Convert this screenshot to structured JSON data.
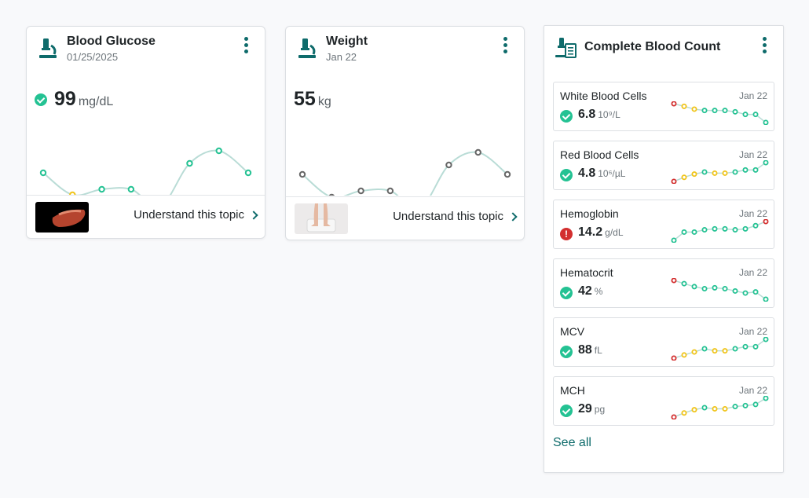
{
  "colors": {
    "accent": "#0e6b6b",
    "ok": "#24c293",
    "warn": "#f0c419",
    "alert": "#d32f2f",
    "neutral": "#666666",
    "line": "#b9dcd6"
  },
  "glucose": {
    "title": "Blood Glucose",
    "date": "01/25/2025",
    "value": "99",
    "unit": "mg/dL",
    "link": "Understand this topic",
    "points": [
      {
        "v": 186,
        "s": "ok"
      },
      {
        "v": 214,
        "s": "warn"
      },
      {
        "v": 207,
        "s": "ok"
      },
      {
        "v": 207,
        "s": "ok"
      },
      {
        "v": 229,
        "s": "alert"
      },
      {
        "v": 174,
        "s": "ok"
      },
      {
        "v": 158,
        "s": "ok"
      },
      {
        "v": 186,
        "s": "ok"
      }
    ]
  },
  "weight": {
    "title": "Weight",
    "date": "Jan 22",
    "value": "55",
    "unit": "kg",
    "link": "Understand this topic",
    "points": [
      {
        "v": 188,
        "s": "neutral"
      },
      {
        "v": 217,
        "s": "neutral"
      },
      {
        "v": 209,
        "s": "neutral"
      },
      {
        "v": 209,
        "s": "neutral"
      },
      {
        "v": 232,
        "s": "neutral"
      },
      {
        "v": 176,
        "s": "neutral"
      },
      {
        "v": 160,
        "s": "neutral"
      },
      {
        "v": 188,
        "s": "neutral"
      }
    ]
  },
  "cbc": {
    "title": "Complete Blood Count",
    "see_all": "See all",
    "rows": [
      {
        "name": "White Blood Cells",
        "date": "Jan 22",
        "value": "6.8",
        "unit": "10⁹/L",
        "status": "ok",
        "spark": [
          {
            "v": 1,
            "s": "alert"
          },
          {
            "v": 0.86,
            "s": "warn"
          },
          {
            "v": 0.71,
            "s": "warn"
          },
          {
            "v": 0.64,
            "s": "ok"
          },
          {
            "v": 0.64,
            "s": "ok"
          },
          {
            "v": 0.64,
            "s": "ok"
          },
          {
            "v": 0.57,
            "s": "ok"
          },
          {
            "v": 0.43,
            "s": "ok"
          },
          {
            "v": 0.43,
            "s": "ok"
          },
          {
            "v": 0
          }
        ]
      },
      {
        "name": "Red Blood Cells",
        "date": "Jan 22",
        "value": "4.8",
        "unit": "10⁶/µL",
        "status": "ok",
        "spark": [
          {
            "v": 0,
            "s": "alert"
          },
          {
            "v": 0.22,
            "s": "warn"
          },
          {
            "v": 0.39,
            "s": "warn"
          },
          {
            "v": 0.5,
            "s": "ok"
          },
          {
            "v": 0.44,
            "s": "warn"
          },
          {
            "v": 0.44,
            "s": "warn"
          },
          {
            "v": 0.5,
            "s": "ok"
          },
          {
            "v": 0.61,
            "s": "ok"
          },
          {
            "v": 0.61,
            "s": "ok"
          },
          {
            "v": 1,
            "s": "ok"
          }
        ]
      },
      {
        "name": "Hemoglobin",
        "date": "Jan 22",
        "value": "14.2",
        "unit": "g/dL",
        "status": "warn",
        "spark": [
          {
            "v": 0,
            "s": "ok"
          },
          {
            "v": 0.44,
            "s": "ok"
          },
          {
            "v": 0.44,
            "s": "ok"
          },
          {
            "v": 0.56,
            "s": "ok"
          },
          {
            "v": 0.61,
            "s": "ok"
          },
          {
            "v": 0.61,
            "s": "ok"
          },
          {
            "v": 0.56,
            "s": "ok"
          },
          {
            "v": 0.61,
            "s": "ok"
          },
          {
            "v": 0.78,
            "s": "ok"
          },
          {
            "v": 1,
            "s": "alert"
          }
        ]
      },
      {
        "name": "Hematocrit",
        "date": "Jan 22",
        "value": "42",
        "unit": "%",
        "status": "ok",
        "spark": [
          {
            "v": 1,
            "s": "alert"
          },
          {
            "v": 0.83,
            "s": "ok"
          },
          {
            "v": 0.67,
            "s": "ok"
          },
          {
            "v": 0.56,
            "s": "ok"
          },
          {
            "v": 0.61,
            "s": "ok"
          },
          {
            "v": 0.56,
            "s": "ok"
          },
          {
            "v": 0.44,
            "s": "ok"
          },
          {
            "v": 0.33,
            "s": "ok"
          },
          {
            "v": 0.39,
            "s": "ok"
          },
          {
            "v": 0,
            "s": "ok"
          }
        ]
      },
      {
        "name": "MCV",
        "date": "Jan 22",
        "value": "88",
        "unit": "fL",
        "status": "ok",
        "spark": [
          {
            "v": 0,
            "s": "alert"
          },
          {
            "v": 0.17,
            "s": "warn"
          },
          {
            "v": 0.33,
            "s": "warn"
          },
          {
            "v": 0.5,
            "s": "ok"
          },
          {
            "v": 0.39,
            "s": "warn"
          },
          {
            "v": 0.39,
            "s": "warn"
          },
          {
            "v": 0.5,
            "s": "ok"
          },
          {
            "v": 0.61,
            "s": "ok"
          },
          {
            "v": 0.61,
            "s": "ok"
          },
          {
            "v": 1,
            "s": "ok"
          }
        ]
      },
      {
        "name": "MCH",
        "date": "Jan 22",
        "value": "29",
        "unit": "pg",
        "status": "ok",
        "spark": [
          {
            "v": 0,
            "s": "alert"
          },
          {
            "v": 0.22,
            "s": "warn"
          },
          {
            "v": 0.39,
            "s": "warn"
          },
          {
            "v": 0.5,
            "s": "ok"
          },
          {
            "v": 0.44,
            "s": "warn"
          },
          {
            "v": 0.44,
            "s": "warn"
          },
          {
            "v": 0.56,
            "s": "ok"
          },
          {
            "v": 0.61,
            "s": "ok"
          },
          {
            "v": 0.67,
            "s": "ok"
          },
          {
            "v": 1,
            "s": "ok"
          }
        ]
      }
    ]
  }
}
